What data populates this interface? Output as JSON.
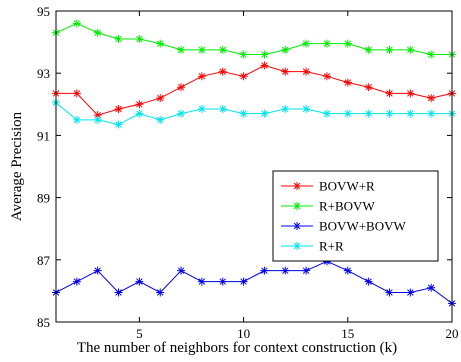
{
  "chart_data": {
    "type": "line",
    "title": "",
    "xlabel": "The number of neighbors for context construction (k)",
    "ylabel": "Average Precision",
    "xlim": [
      1,
      20
    ],
    "ylim": [
      85,
      95
    ],
    "xticks": [
      5,
      10,
      15,
      20
    ],
    "yticks": [
      85,
      87,
      89,
      91,
      93,
      95
    ],
    "grid": false,
    "legend_position": "center-right",
    "marker": "asterisk",
    "x": [
      1,
      2,
      3,
      4,
      5,
      6,
      7,
      8,
      9,
      10,
      11,
      12,
      13,
      14,
      15,
      16,
      17,
      18,
      19,
      20
    ],
    "series": [
      {
        "name": "BOVW+R",
        "color": "#ff0000",
        "values": [
          92.35,
          92.35,
          91.65,
          91.85,
          92.0,
          92.2,
          92.55,
          92.9,
          93.05,
          92.9,
          93.25,
          93.05,
          93.05,
          92.9,
          92.7,
          92.55,
          92.35,
          92.35,
          92.2,
          92.35
        ]
      },
      {
        "name": "R+BOVW",
        "color": "#00ee00",
        "values": [
          94.3,
          94.6,
          94.3,
          94.1,
          94.1,
          93.95,
          93.75,
          93.75,
          93.75,
          93.6,
          93.6,
          93.75,
          93.95,
          93.95,
          93.95,
          93.75,
          93.75,
          93.75,
          93.6,
          93.6
        ]
      },
      {
        "name": "BOVW+BOVW",
        "color": "#0000ee",
        "values": [
          85.95,
          86.3,
          86.65,
          85.95,
          86.3,
          85.95,
          86.65,
          86.3,
          86.3,
          86.3,
          86.65,
          86.65,
          86.65,
          86.95,
          86.65,
          86.3,
          85.95,
          85.95,
          86.1,
          85.6
        ]
      },
      {
        "name": "R+R",
        "color": "#00e5ee",
        "values": [
          92.05,
          91.5,
          91.5,
          91.35,
          91.7,
          91.5,
          91.7,
          91.85,
          91.85,
          91.7,
          91.7,
          91.85,
          91.85,
          91.7,
          91.7,
          91.7,
          91.7,
          91.7,
          91.7,
          91.7
        ]
      }
    ]
  }
}
